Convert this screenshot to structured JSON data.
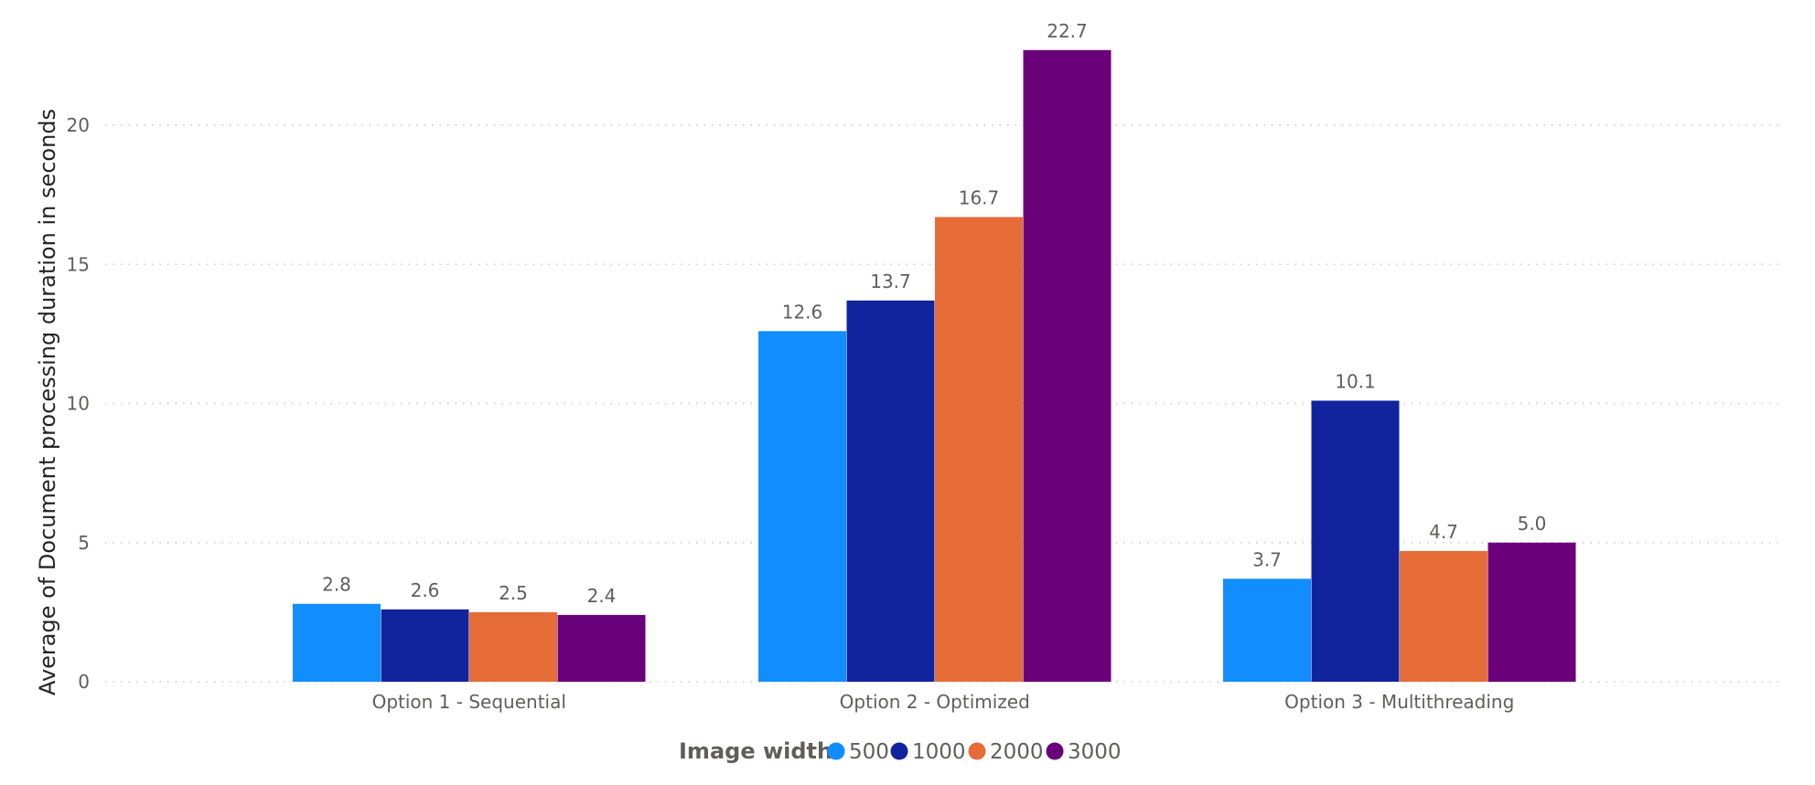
{
  "chart_data": {
    "type": "bar",
    "categories": [
      "Option 1 - Sequential",
      "Option 2 - Optimized",
      "Option 3 - Multithreading"
    ],
    "series": [
      {
        "name": "500",
        "values": [
          2.8,
          12.6,
          3.7
        ],
        "color": "#118dff"
      },
      {
        "name": "1000",
        "values": [
          2.6,
          13.7,
          10.1
        ],
        "color": "#12239e"
      },
      {
        "name": "2000",
        "values": [
          2.5,
          16.7,
          4.7
        ],
        "color": "#e66c37"
      },
      {
        "name": "3000",
        "values": [
          2.4,
          22.7,
          5.0
        ],
        "color": "#6b007b"
      }
    ],
    "data_labels": [
      [
        "2.8",
        "12.6",
        "3.7"
      ],
      [
        "2.6",
        "13.7",
        "10.1"
      ],
      [
        "2.5",
        "16.7",
        "4.7"
      ],
      [
        "2.4",
        "22.7",
        "5.0"
      ]
    ],
    "title": "",
    "xlabel": "",
    "ylabel": "Average of Document processing duration in seconds",
    "ylim": [
      0,
      23
    ],
    "yticks": [
      0,
      5,
      10,
      15,
      20
    ],
    "ytick_labels": [
      "0",
      "5",
      "10",
      "15",
      "20"
    ],
    "grid": true,
    "legend": {
      "title": "Image width",
      "position": "bottom-center"
    }
  }
}
